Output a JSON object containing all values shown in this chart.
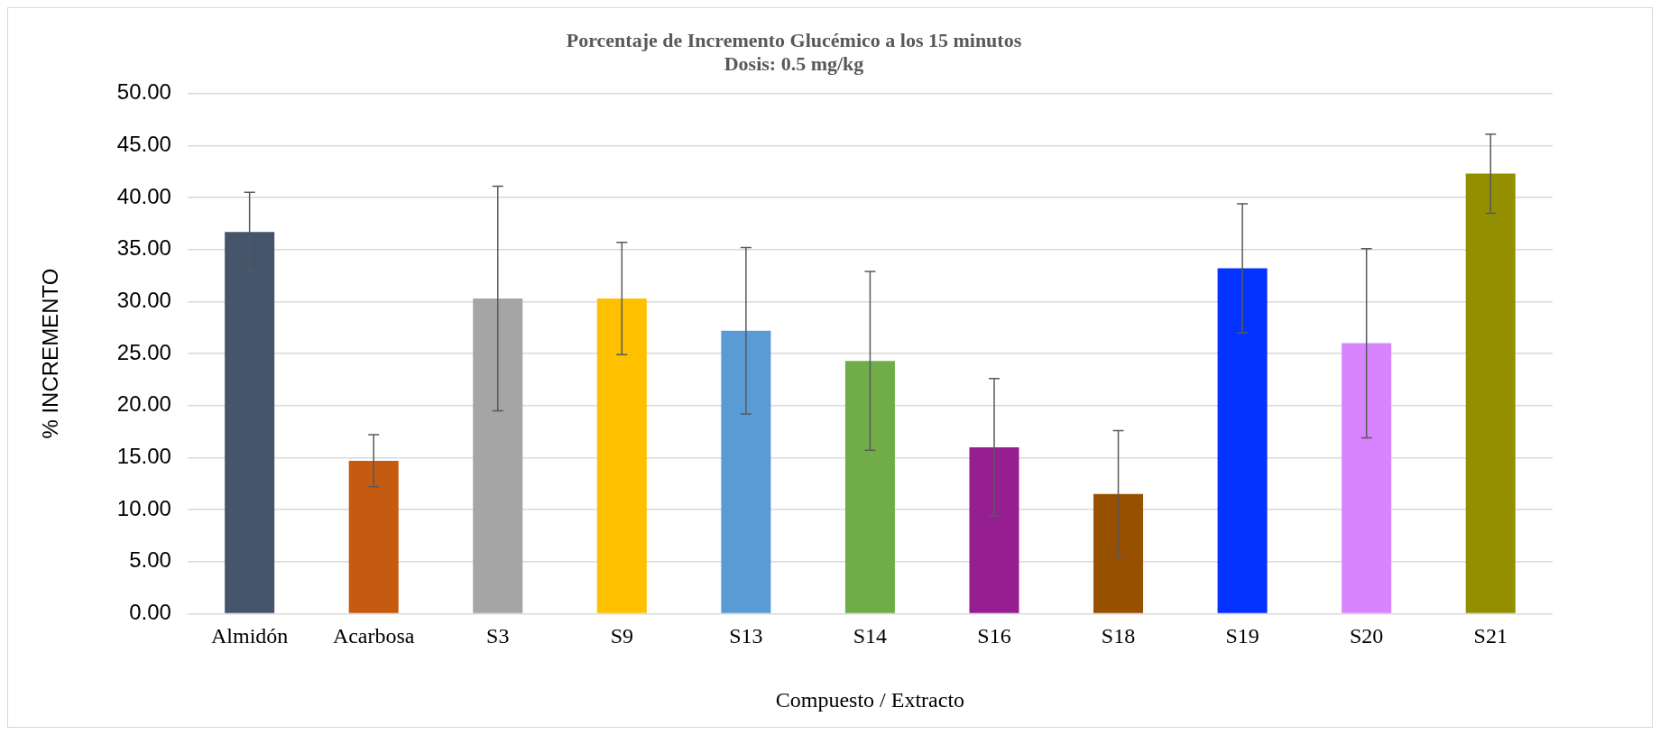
{
  "chart_data": {
    "type": "bar",
    "title": "Porcentaje de Incremento Glucémico a los 15 minutos",
    "subtitle": "Dosis: 0.5 mg/kg",
    "xlabel": "Compuesto / Extracto",
    "ylabel": "% INCREMENTO",
    "categories": [
      "Almidón",
      "Acarbosa",
      "S3",
      "S9",
      "S13",
      "S14",
      "S16",
      "S18",
      "S19",
      "S20",
      "S21"
    ],
    "values": [
      36.7,
      14.7,
      30.3,
      30.3,
      27.2,
      24.3,
      16.0,
      11.5,
      33.2,
      26.0,
      42.3
    ],
    "errors": [
      3.8,
      2.5,
      10.8,
      5.4,
      8.0,
      8.6,
      6.6,
      6.1,
      6.2,
      9.1,
      3.8
    ],
    "colors": [
      "#44546a",
      "#c55a11",
      "#a5a5a5",
      "#ffc000",
      "#5b9bd5",
      "#70ad47",
      "#951f91",
      "#975000",
      "#0432ff",
      "#d883ff",
      "#938f00"
    ],
    "ylim": [
      0,
      50
    ],
    "yticks": [
      {
        "value": 0,
        "label": "0.00"
      },
      {
        "value": 5,
        "label": "5.00"
      },
      {
        "value": 10,
        "label": "10.00"
      },
      {
        "value": 15,
        "label": "15.00"
      },
      {
        "value": 20,
        "label": "20.00"
      },
      {
        "value": 25,
        "label": "25.00"
      },
      {
        "value": 30,
        "label": "30.00"
      },
      {
        "value": 35,
        "label": "35.00"
      },
      {
        "value": 40,
        "label": "40.00"
      },
      {
        "value": 45,
        "label": "45.00"
      },
      {
        "value": 50,
        "label": "50.00"
      }
    ],
    "grid": "y",
    "legend": false
  }
}
